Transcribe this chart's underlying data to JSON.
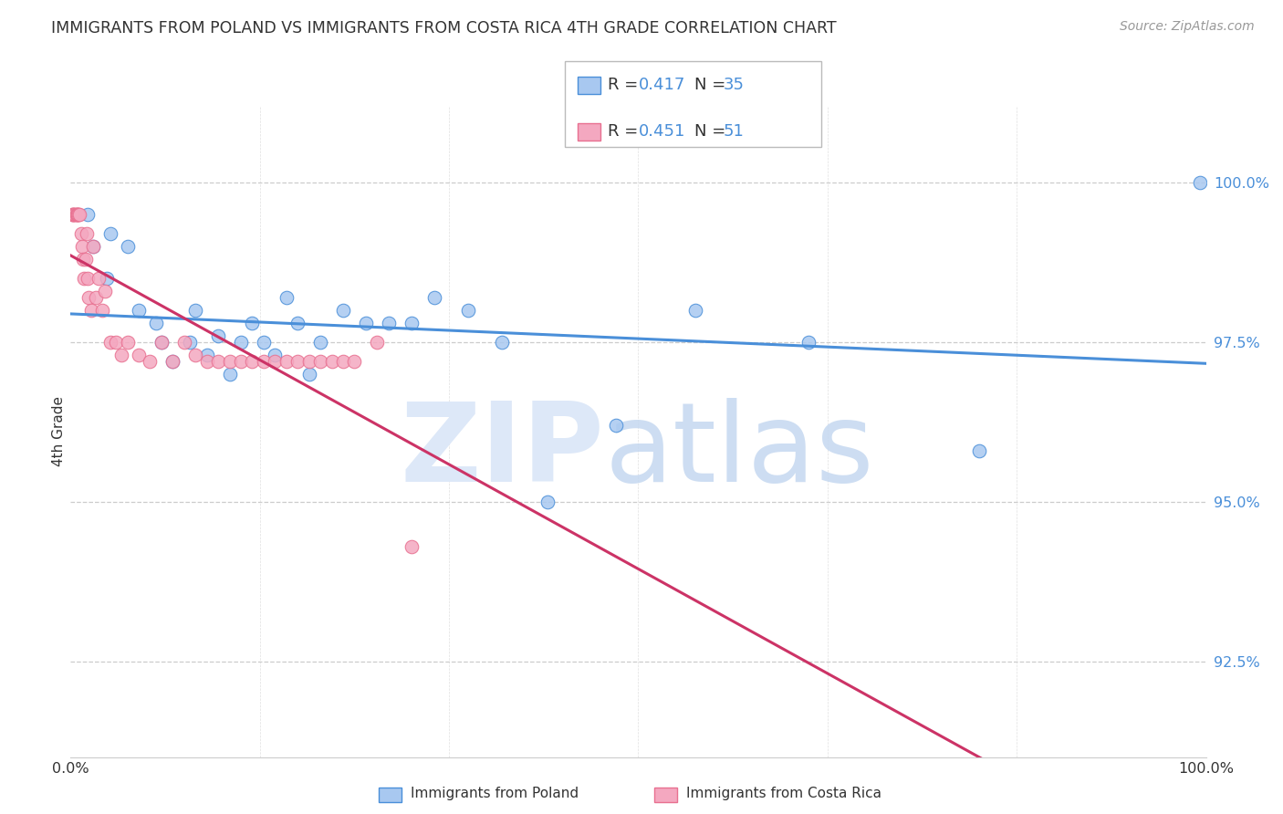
{
  "title": "IMMIGRANTS FROM POLAND VS IMMIGRANTS FROM COSTA RICA 4TH GRADE CORRELATION CHART",
  "source": "Source: ZipAtlas.com",
  "ylabel": "4th Grade",
  "ylabel_tick_vals": [
    92.5,
    95.0,
    97.5,
    100.0
  ],
  "xmin": 0.0,
  "xmax": 100.0,
  "ymin": 91.0,
  "ymax": 101.2,
  "color_poland": "#a8c8f0",
  "color_costarica": "#f4a8c0",
  "line_color_poland": "#4a8fd9",
  "line_color_costarica": "#cc3366",
  "poland_x": [
    1.5,
    2.0,
    3.2,
    3.5,
    5.0,
    6.0,
    7.5,
    8.0,
    9.0,
    10.5,
    11.0,
    12.0,
    13.0,
    14.0,
    15.0,
    16.0,
    17.0,
    18.0,
    19.0,
    20.0,
    21.0,
    22.0,
    24.0,
    26.0,
    28.0,
    30.0,
    32.0,
    35.0,
    38.0,
    42.0,
    48.0,
    55.0,
    65.0,
    80.0,
    99.5
  ],
  "poland_y": [
    99.5,
    99.0,
    98.5,
    99.2,
    99.0,
    98.0,
    97.8,
    97.5,
    97.2,
    97.5,
    98.0,
    97.3,
    97.6,
    97.0,
    97.5,
    97.8,
    97.5,
    97.3,
    98.2,
    97.8,
    97.0,
    97.5,
    98.0,
    97.8,
    97.8,
    97.8,
    98.2,
    98.0,
    97.5,
    95.0,
    96.2,
    98.0,
    97.5,
    95.8,
    100.0
  ],
  "costarica_x": [
    0.15,
    0.2,
    0.25,
    0.3,
    0.4,
    0.5,
    0.55,
    0.6,
    0.65,
    0.7,
    0.8,
    0.9,
    1.0,
    1.1,
    1.2,
    1.3,
    1.4,
    1.5,
    1.6,
    1.8,
    2.0,
    2.2,
    2.5,
    2.8,
    3.0,
    3.5,
    4.0,
    4.5,
    5.0,
    6.0,
    7.0,
    8.0,
    9.0,
    10.0,
    11.0,
    12.0,
    13.0,
    14.0,
    15.0,
    16.0,
    17.0,
    18.0,
    19.0,
    20.0,
    21.0,
    22.0,
    23.0,
    24.0,
    25.0,
    27.0,
    30.0
  ],
  "costarica_y": [
    99.5,
    99.5,
    99.5,
    99.5,
    99.5,
    99.5,
    99.5,
    99.5,
    99.5,
    99.5,
    99.5,
    99.2,
    99.0,
    98.8,
    98.5,
    98.8,
    99.2,
    98.5,
    98.2,
    98.0,
    99.0,
    98.2,
    98.5,
    98.0,
    98.3,
    97.5,
    97.5,
    97.3,
    97.5,
    97.3,
    97.2,
    97.5,
    97.2,
    97.5,
    97.3,
    97.2,
    97.2,
    97.2,
    97.2,
    97.2,
    97.2,
    97.2,
    97.2,
    97.2,
    97.2,
    97.2,
    97.2,
    97.2,
    97.2,
    97.5,
    94.3
  ]
}
